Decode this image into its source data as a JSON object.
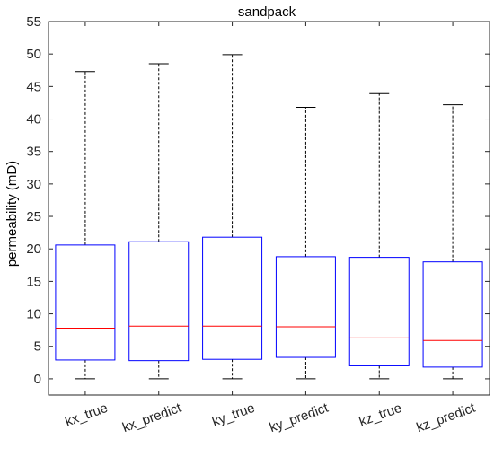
{
  "chart_data": {
    "type": "boxplot",
    "title": "sandpack",
    "xlabel": "",
    "ylabel": "permeability (mD)",
    "ylim": [
      -2.5,
      55
    ],
    "yticks": [
      0,
      5,
      10,
      15,
      20,
      25,
      30,
      35,
      40,
      45,
      50,
      55
    ],
    "grid": false,
    "categories": [
      "kx_true",
      "kx_predict",
      "ky_true",
      "ky_predict",
      "kz_true",
      "kz_predict"
    ],
    "boxes": [
      {
        "whisker_low": 0,
        "q1": 2.9,
        "median": 7.8,
        "q3": 20.6,
        "whisker_high": 47.3
      },
      {
        "whisker_low": 0,
        "q1": 2.8,
        "median": 8.1,
        "q3": 21.1,
        "whisker_high": 48.5
      },
      {
        "whisker_low": 0,
        "q1": 3.0,
        "median": 8.1,
        "q3": 21.8,
        "whisker_high": 49.9
      },
      {
        "whisker_low": 0,
        "q1": 3.3,
        "median": 8.0,
        "q3": 18.8,
        "whisker_high": 41.8
      },
      {
        "whisker_low": 0,
        "q1": 2.0,
        "median": 6.3,
        "q3": 18.7,
        "whisker_high": 43.9
      },
      {
        "whisker_low": 0,
        "q1": 1.8,
        "median": 5.9,
        "q3": 18.0,
        "whisker_high": 42.2
      }
    ],
    "colors": {
      "box": "#0000ff",
      "median": "#ff0000",
      "whisker": "#000000",
      "axis": "#262626"
    }
  }
}
